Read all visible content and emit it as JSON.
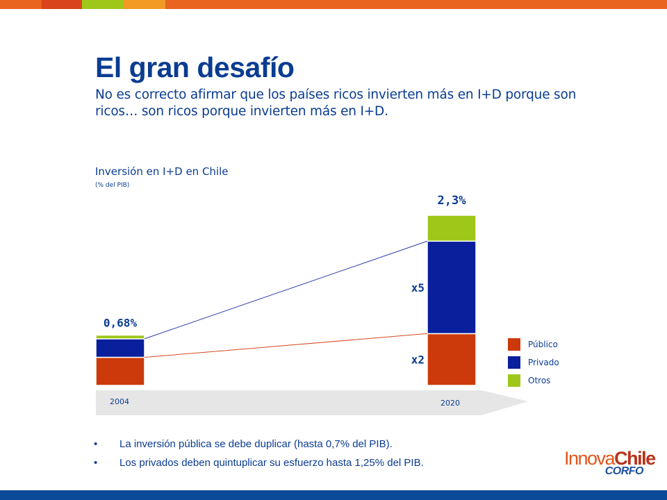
{
  "header": {
    "title": "El gran desafío",
    "subtitle": "No es correcto afirmar que los países ricos invierten más en I+D porque son ricos… son ricos porque invierten más en I+D.",
    "stripe_colors": [
      "#e8641f",
      "#d9441c",
      "#9ec71a",
      "#f39a25",
      "#e8641f"
    ]
  },
  "chart_data": {
    "type": "bar",
    "stacked": true,
    "title": "Inversión en I+D en Chile",
    "unit_label": "(% del PIB)",
    "categories": [
      "2004",
      "2020"
    ],
    "series": [
      {
        "name": "Público",
        "color": "#cc3a0b",
        "values": [
          0.38,
          0.7
        ]
      },
      {
        "name": "Privado",
        "color": "#0a1f9c",
        "values": [
          0.25,
          1.25
        ]
      },
      {
        "name": "Otros",
        "color": "#9ec71a",
        "values": [
          0.05,
          0.35
        ]
      }
    ],
    "totals": [
      "0,68%",
      "2,3%"
    ],
    "annotations": [
      {
        "text": "x5",
        "series": "Privado"
      },
      {
        "text": "x2",
        "series": "Público"
      }
    ],
    "legend_position": "right",
    "ylim": [
      0,
      2.3
    ]
  },
  "bullets": [
    "La inversión pública se debe duplicar (hasta 0,7% del PIB).",
    "Los privados deben quintuplicar su esfuerzo hasta 1,25% del PIB."
  ],
  "logo": {
    "text_top_regular": "Innova",
    "text_top_bold": "Chile",
    "text_bottom": "CORFO"
  },
  "colors": {
    "brand_blue": "#0a3c91",
    "bottom_bar": "#0a4a96",
    "arrow_fill": "#e6e6e6"
  }
}
